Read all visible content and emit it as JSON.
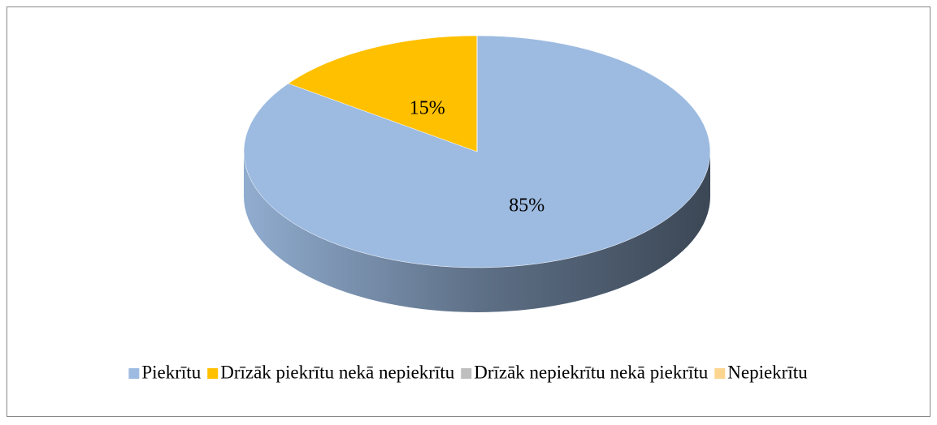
{
  "chart_data": {
    "type": "pie",
    "categories": [
      "Piekrītu",
      "Drīzāk piekrītu nekā nepiekrītu",
      "Drīzāk nepiekrītu nekā piekrītu",
      "Nepiekrītu"
    ],
    "values": [
      85,
      15,
      0,
      0
    ],
    "value_labels": [
      "85%",
      "15%",
      null,
      null
    ],
    "colors": [
      "#9dbbe1",
      "#ffc000",
      "#bfbfbf",
      "#fcd590"
    ],
    "legend": "bottom"
  }
}
